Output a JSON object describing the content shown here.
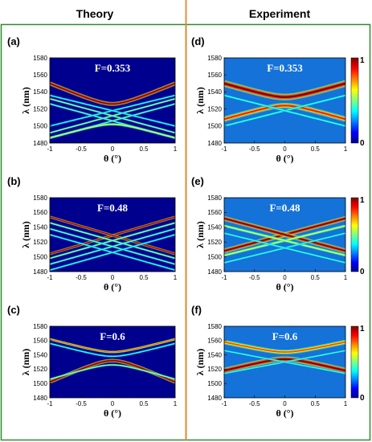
{
  "headers": {
    "left": "Theory",
    "right": "Experiment"
  },
  "colors": {
    "left_border": "#2e8b2e",
    "right_border": "#2e8b2e",
    "divider": "#e8862a",
    "plot_background": "#00008f"
  },
  "colorbar": {
    "max_label": "1",
    "min_label": "0"
  },
  "chart_data": [
    {
      "type": "heatmap",
      "panel": "(a)",
      "annotation": "F=0.353",
      "xlabel": "θ (°)",
      "ylabel": "λ (nm)",
      "xlim": [
        -1,
        1
      ],
      "ylim": [
        1480,
        1580
      ],
      "xticks": [
        "-1",
        "-0.5",
        "0",
        "0.5",
        "1"
      ],
      "yticks": [
        "1480",
        "1500",
        "1520",
        "1540",
        "1560",
        "1580"
      ],
      "bands": [
        {
          "shape": "lower-hyperbola",
          "lambda_at_0": 1526,
          "lambda_at_edge": 1550,
          "intensity": 1.0,
          "width": 1.8
        },
        {
          "shape": "lines",
          "lambda_at_0": 1512,
          "slope": 20,
          "intensity": 0.55,
          "width": 0.8
        },
        {
          "shape": "lines",
          "lambda_at_0": 1506,
          "slope": 20,
          "intensity": 0.5,
          "width": 0.8
        },
        {
          "shape": "lines",
          "lambda_at_0": 1518,
          "slope": 18,
          "intensity": 0.45,
          "width": 0.7
        },
        {
          "shape": "upper-hyperbola",
          "lambda_at_0": 1502,
          "lambda_at_edge": 1486,
          "intensity": 0.6,
          "width": 1.2
        }
      ]
    },
    {
      "type": "heatmap",
      "panel": "(b)",
      "annotation": "F=0.48",
      "xlabel": "θ (°)",
      "ylabel": "λ (nm)",
      "xlim": [
        -1,
        1
      ],
      "ylim": [
        1480,
        1580
      ],
      "xticks": [
        "-1",
        "-0.5",
        "0",
        "0.5",
        "1"
      ],
      "yticks": [
        "1480",
        "1500",
        "1520",
        "1540",
        "1560",
        "1580"
      ],
      "bands": [
        {
          "shape": "lines",
          "lambda_at_0": 1529,
          "slope": 25,
          "intensity": 1.0,
          "width": 1.4
        },
        {
          "shape": "lines",
          "lambda_at_0": 1522,
          "slope": 24,
          "intensity": 0.55,
          "width": 0.8
        },
        {
          "shape": "lines",
          "lambda_at_0": 1514,
          "slope": 24,
          "intensity": 0.5,
          "width": 0.7
        },
        {
          "shape": "lines",
          "lambda_at_0": 1506,
          "slope": 24,
          "intensity": 0.45,
          "width": 0.7
        }
      ]
    },
    {
      "type": "heatmap",
      "panel": "(c)",
      "annotation": "F=0.6",
      "xlabel": "θ (°)",
      "ylabel": "λ (nm)",
      "xlim": [
        -1,
        1
      ],
      "ylim": [
        1480,
        1580
      ],
      "xticks": [
        "-1",
        "-0.5",
        "0",
        "0.5",
        "1"
      ],
      "yticks": [
        "1480",
        "1500",
        "1520",
        "1540",
        "1560",
        "1580"
      ],
      "bands": [
        {
          "shape": "upper-hyperbola",
          "lambda_at_0": 1532,
          "lambda_at_edge": 1502,
          "intensity": 1.0,
          "width": 2.0
        },
        {
          "shape": "upper-hyperbola",
          "lambda_at_0": 1526,
          "lambda_at_edge": 1506,
          "intensity": 0.55,
          "width": 1.0
        },
        {
          "shape": "lower-hyperbola",
          "lambda_at_0": 1544,
          "lambda_at_edge": 1562,
          "intensity": 0.8,
          "width": 1.4
        },
        {
          "shape": "lower-hyperbola",
          "lambda_at_0": 1538,
          "lambda_at_edge": 1556,
          "intensity": 0.45,
          "width": 0.8
        }
      ]
    },
    {
      "type": "heatmap",
      "panel": "(d)",
      "annotation": "F=0.353",
      "xlabel": "θ (°)",
      "ylabel": "λ (nm)",
      "xlim": [
        -1,
        1
      ],
      "ylim": [
        1480,
        1580
      ],
      "xticks": [
        "-1",
        "-0.5",
        "0",
        "0.5",
        "1"
      ],
      "yticks": [
        "1480",
        "1500",
        "1520",
        "1540",
        "1560",
        "1580"
      ],
      "colorbar": [
        0,
        1
      ],
      "bands": [
        {
          "shape": "lower-hyperbola",
          "lambda_at_0": 1534,
          "lambda_at_edge": 1550,
          "intensity": 1.0,
          "width": 3.0
        },
        {
          "shape": "upper-hyperbola",
          "lambda_at_0": 1524,
          "lambda_at_edge": 1508,
          "intensity": 0.85,
          "width": 2.5
        },
        {
          "shape": "lines",
          "lambda_at_0": 1518,
          "slope": 18,
          "intensity": 0.45,
          "width": 1.2
        }
      ]
    },
    {
      "type": "heatmap",
      "panel": "(e)",
      "annotation": "F=0.48",
      "xlabel": "θ (°)",
      "ylabel": "λ (nm)",
      "xlim": [
        -1,
        1
      ],
      "ylim": [
        1480,
        1580
      ],
      "xticks": [
        "-1",
        "-0.5",
        "0",
        "0.5",
        "1"
      ],
      "yticks": [
        "1480",
        "1500",
        "1520",
        "1540",
        "1560",
        "1580"
      ],
      "colorbar": [
        0,
        1
      ],
      "bands": [
        {
          "shape": "lines",
          "lambda_at_0": 1530,
          "slope": 22,
          "intensity": 1.0,
          "width": 2.5
        },
        {
          "shape": "lines",
          "lambda_at_0": 1522,
          "slope": 20,
          "intensity": 0.6,
          "width": 1.5
        },
        {
          "shape": "lines",
          "lambda_at_0": 1512,
          "slope": 20,
          "intensity": 0.45,
          "width": 1.2
        }
      ]
    },
    {
      "type": "heatmap",
      "panel": "(f)",
      "annotation": "F=0.6",
      "xlabel": "θ (°)",
      "ylabel": "λ (nm)",
      "xlim": [
        -1,
        1
      ],
      "ylim": [
        1480,
        1580
      ],
      "xticks": [
        "-1",
        "-0.5",
        "0",
        "0.5",
        "1"
      ],
      "yticks": [
        "1480",
        "1500",
        "1520",
        "1540",
        "1560",
        "1580"
      ],
      "colorbar": [
        0,
        1
      ],
      "bands": [
        {
          "shape": "upper-hyperbola",
          "lambda_at_0": 1534,
          "lambda_at_edge": 1518,
          "intensity": 1.0,
          "width": 3.0
        },
        {
          "shape": "lower-hyperbola",
          "lambda_at_0": 1544,
          "lambda_at_edge": 1558,
          "intensity": 0.8,
          "width": 2.5
        },
        {
          "shape": "lines",
          "lambda_at_0": 1530,
          "slope": 16,
          "intensity": 0.45,
          "width": 1.2
        }
      ]
    }
  ]
}
